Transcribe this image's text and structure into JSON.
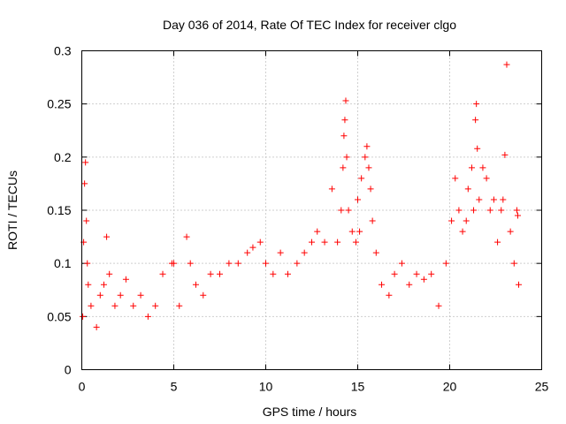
{
  "chart_data": {
    "type": "scatter",
    "title": "Day 036 of 2014, Rate Of TEC Index for receiver clgo",
    "xlabel": "GPS time / hours",
    "ylabel": "ROTI / TECUs",
    "xlim": [
      0,
      25
    ],
    "ylim": [
      0,
      0.3
    ],
    "x_ticks": [
      0,
      5,
      10,
      15,
      20,
      25
    ],
    "x_tick_labels": [
      "0",
      "5",
      "10",
      "15",
      "20",
      "25"
    ],
    "y_ticks": [
      0,
      0.05,
      0.1,
      0.15,
      0.2,
      0.25,
      0.3
    ],
    "y_tick_labels": [
      "0",
      "0.05",
      "0.1",
      "0.15",
      "0.2",
      "0.25",
      "0.3"
    ],
    "grid": true,
    "marker": "+",
    "marker_color": "#ff0000",
    "series": [
      {
        "name": "ROTI",
        "x": [
          0.05,
          0.1,
          0.15,
          0.2,
          0.25,
          0.3,
          0.35,
          0.5,
          0.8,
          1.0,
          1.2,
          1.35,
          1.5,
          1.8,
          2.1,
          2.4,
          2.8,
          3.2,
          3.6,
          4.0,
          4.4,
          4.9,
          5.0,
          5.3,
          5.7,
          5.9,
          6.2,
          6.6,
          7.0,
          7.5,
          8.0,
          8.5,
          9.0,
          9.3,
          9.7,
          10.0,
          10.4,
          10.8,
          11.2,
          11.7,
          12.1,
          12.5,
          12.8,
          13.2,
          13.6,
          13.9,
          14.1,
          14.2,
          14.25,
          14.3,
          14.35,
          14.4,
          14.5,
          14.7,
          14.9,
          15.0,
          15.1,
          15.2,
          15.4,
          15.5,
          15.6,
          15.7,
          15.8,
          16.0,
          16.3,
          16.7,
          17.0,
          17.4,
          17.8,
          18.2,
          18.6,
          19.0,
          19.4,
          19.8,
          20.1,
          20.3,
          20.5,
          20.7,
          20.9,
          21.0,
          21.2,
          21.3,
          21.4,
          21.45,
          21.5,
          21.6,
          21.8,
          22.0,
          22.2,
          22.4,
          22.6,
          22.8,
          22.9,
          23.0,
          23.1,
          23.3,
          23.5,
          23.65,
          23.7,
          23.75
        ],
        "y": [
          0.05,
          0.12,
          0.175,
          0.195,
          0.14,
          0.1,
          0.08,
          0.06,
          0.04,
          0.07,
          0.08,
          0.125,
          0.09,
          0.06,
          0.07,
          0.085,
          0.06,
          0.07,
          0.05,
          0.06,
          0.09,
          0.1,
          0.1,
          0.06,
          0.125,
          0.1,
          0.08,
          0.07,
          0.09,
          0.09,
          0.1,
          0.1,
          0.11,
          0.115,
          0.12,
          0.1,
          0.09,
          0.11,
          0.09,
          0.1,
          0.11,
          0.12,
          0.13,
          0.12,
          0.17,
          0.12,
          0.15,
          0.19,
          0.22,
          0.235,
          0.253,
          0.2,
          0.15,
          0.13,
          0.12,
          0.16,
          0.13,
          0.18,
          0.2,
          0.21,
          0.19,
          0.17,
          0.14,
          0.11,
          0.08,
          0.07,
          0.09,
          0.1,
          0.08,
          0.09,
          0.085,
          0.09,
          0.06,
          0.1,
          0.14,
          0.18,
          0.15,
          0.13,
          0.14,
          0.17,
          0.19,
          0.15,
          0.235,
          0.25,
          0.208,
          0.16,
          0.19,
          0.18,
          0.15,
          0.16,
          0.12,
          0.15,
          0.16,
          0.202,
          0.287,
          0.13,
          0.1,
          0.15,
          0.145,
          0.08
        ]
      }
    ]
  }
}
